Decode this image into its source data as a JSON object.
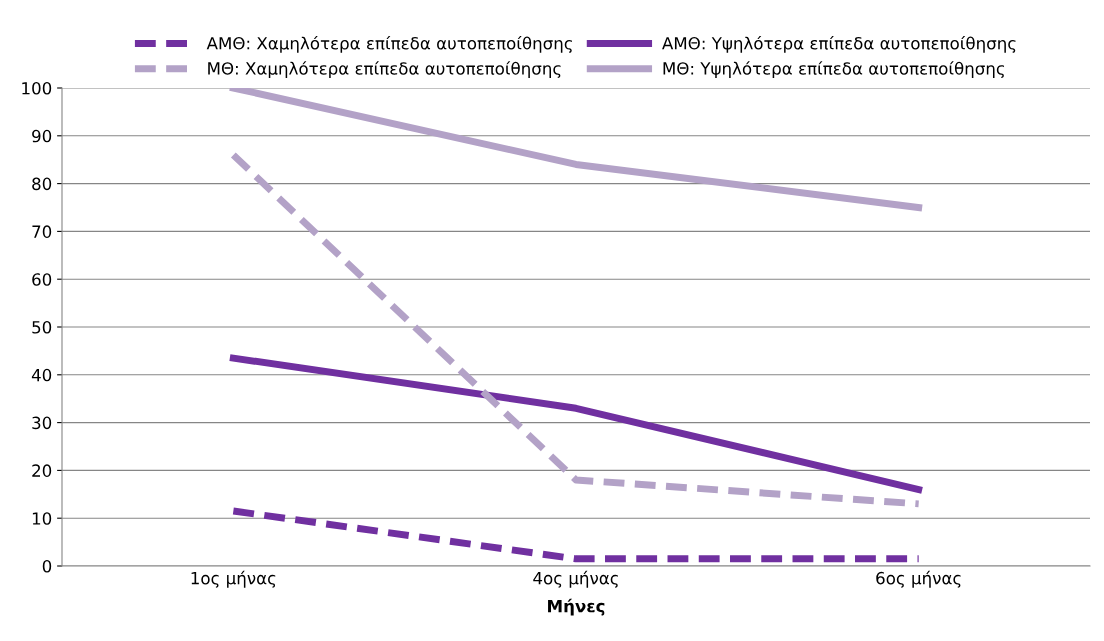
{
  "chart_data": {
    "type": "line",
    "xlabel": "Μήνες",
    "categories": [
      "1ος μήνας",
      "4ος μήνας",
      "6ος μήνας"
    ],
    "series": [
      {
        "name": "ΑΜΘ: Χαμηλότερα επίπεδα αυτοπεποίθησης",
        "color": "#7030a0",
        "line_style": "dashed",
        "values": [
          11.5,
          1.5,
          1.5
        ]
      },
      {
        "name": "ΑΜΘ: Υψηλότερα επίπεδα αυτοπεποίθησης",
        "color": "#7030a0",
        "line_style": "solid",
        "values": [
          43.5,
          33,
          16
        ]
      },
      {
        "name": "ΜΘ: Χαμηλότερα επίπεδα αυτοπεποίθησης",
        "color": "#b3a2c7",
        "line_style": "dashed",
        "values": [
          86,
          18,
          13
        ]
      },
      {
        "name": "ΜΘ: Υψηλότερα επίπεδα αυτοπεποίθησης",
        "color": "#b3a2c7",
        "line_style": "solid",
        "values": [
          100,
          84,
          75
        ]
      }
    ],
    "ylim": [
      0,
      100
    ],
    "yticks": [
      0,
      10,
      20,
      30,
      40,
      50,
      60,
      70,
      80,
      90,
      100
    ],
    "grid": "y",
    "legend": "top"
  }
}
